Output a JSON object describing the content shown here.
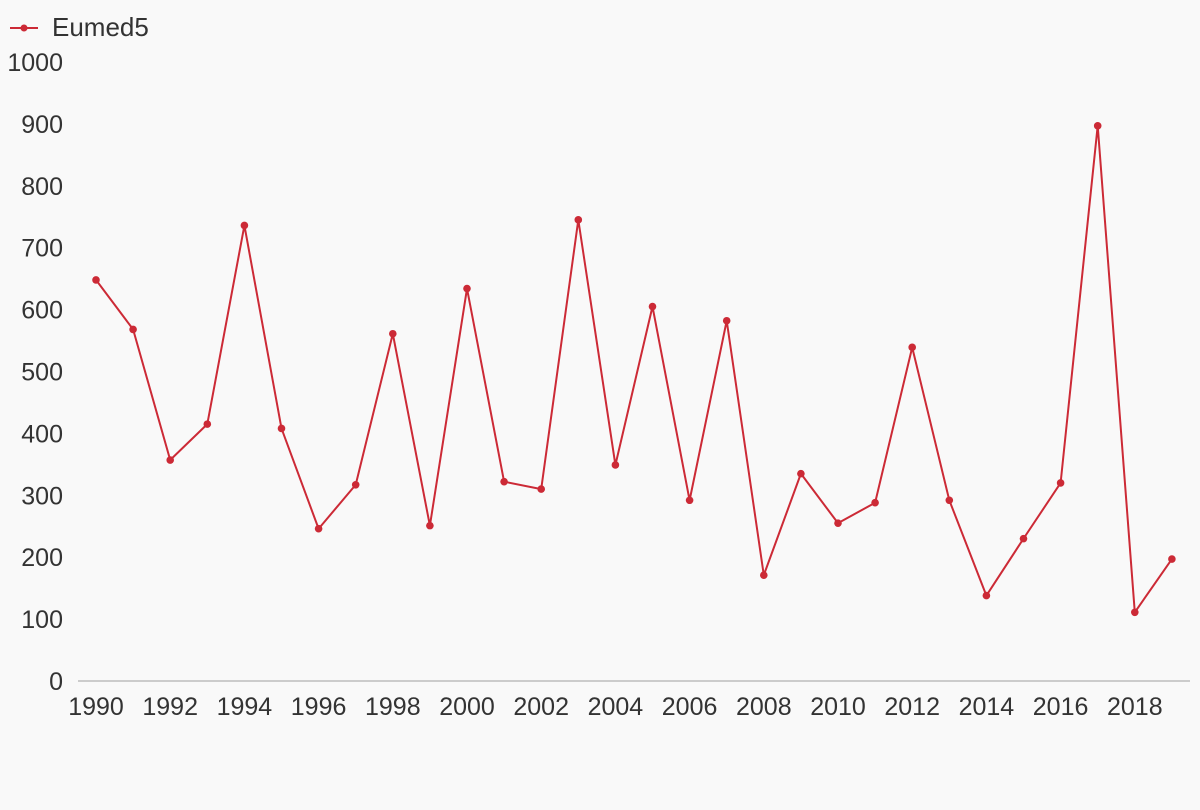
{
  "chart_data": {
    "type": "line",
    "x": [
      1990,
      1991,
      1992,
      1993,
      1994,
      1995,
      1996,
      1997,
      1998,
      1999,
      2000,
      2001,
      2002,
      2003,
      2004,
      2005,
      2006,
      2007,
      2008,
      2009,
      2010,
      2011,
      2012,
      2013,
      2014,
      2015,
      2016,
      2017,
      2018,
      2019
    ],
    "series": [
      {
        "name": "Eumed5",
        "color": "#cc2a36",
        "values": [
          648,
          568,
          357,
          415,
          736,
          408,
          246,
          317,
          561,
          251,
          634,
          322,
          310,
          745,
          349,
          605,
          292,
          582,
          171,
          335,
          255,
          288,
          539,
          292,
          138,
          230,
          320,
          897,
          111,
          197
        ]
      }
    ],
    "xticks": [
      1990,
      1992,
      1994,
      1996,
      1998,
      2000,
      2002,
      2004,
      2006,
      2008,
      2010,
      2012,
      2014,
      2016,
      2018
    ],
    "yticks": [
      0,
      100,
      200,
      300,
      400,
      500,
      600,
      700,
      800,
      900,
      1000
    ],
    "ylim": [
      0,
      1000
    ],
    "xlim": [
      1990,
      2019
    ],
    "title": "",
    "xlabel": "",
    "ylabel": "",
    "grid": false,
    "legend_position": "top-left",
    "colors": {
      "background": "#f9f9f9",
      "axis": "#cccccc",
      "text": "#333333"
    }
  }
}
